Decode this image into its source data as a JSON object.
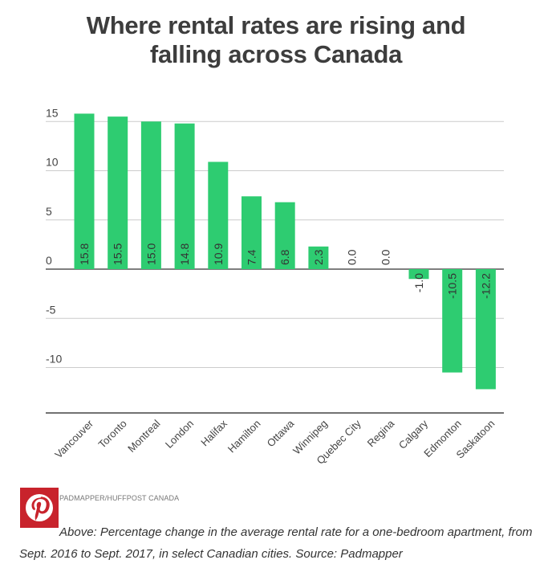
{
  "chart_data": {
    "type": "bar",
    "title_lines": [
      "Where rental rates are rising and",
      "falling across Canada"
    ],
    "categories": [
      "Vancouver",
      "Toronto",
      "Montreal",
      "London",
      "Halifax",
      "Hamilton",
      "Ottawa",
      "Winnipeg",
      "Quebec City",
      "Regina",
      "Calgary",
      "Edmonton",
      "Saskatoon"
    ],
    "values": [
      15.8,
      15.5,
      15.0,
      14.8,
      10.9,
      7.4,
      6.8,
      2.3,
      0.0,
      0.0,
      -1.0,
      -10.5,
      -12.2
    ],
    "value_labels": [
      "15.8",
      "15.5",
      "15.0",
      "14.8",
      "10.9",
      "7.4",
      "6.8",
      "2.3",
      "0.0",
      "0.0",
      "-1.0",
      "-10.5",
      "-12.2"
    ],
    "yticks": [
      15,
      10,
      5,
      0,
      -5,
      -10
    ],
    "ylim": [
      -14.5,
      17.5
    ],
    "grid": true,
    "bar_color": "#2ecc71",
    "xlabel": "",
    "ylabel": ""
  },
  "source_credit": "PADMAPPER/HUFFPOST CANADA",
  "caption": "Above: Percentage change in the average rental rate for a one-bedroom apartment, from Sept. 2016 to Sept. 2017, in select Canadian cities. Source: Padmapper",
  "pinterest": {
    "icon": "pinterest-icon",
    "color": "#c8232c"
  }
}
